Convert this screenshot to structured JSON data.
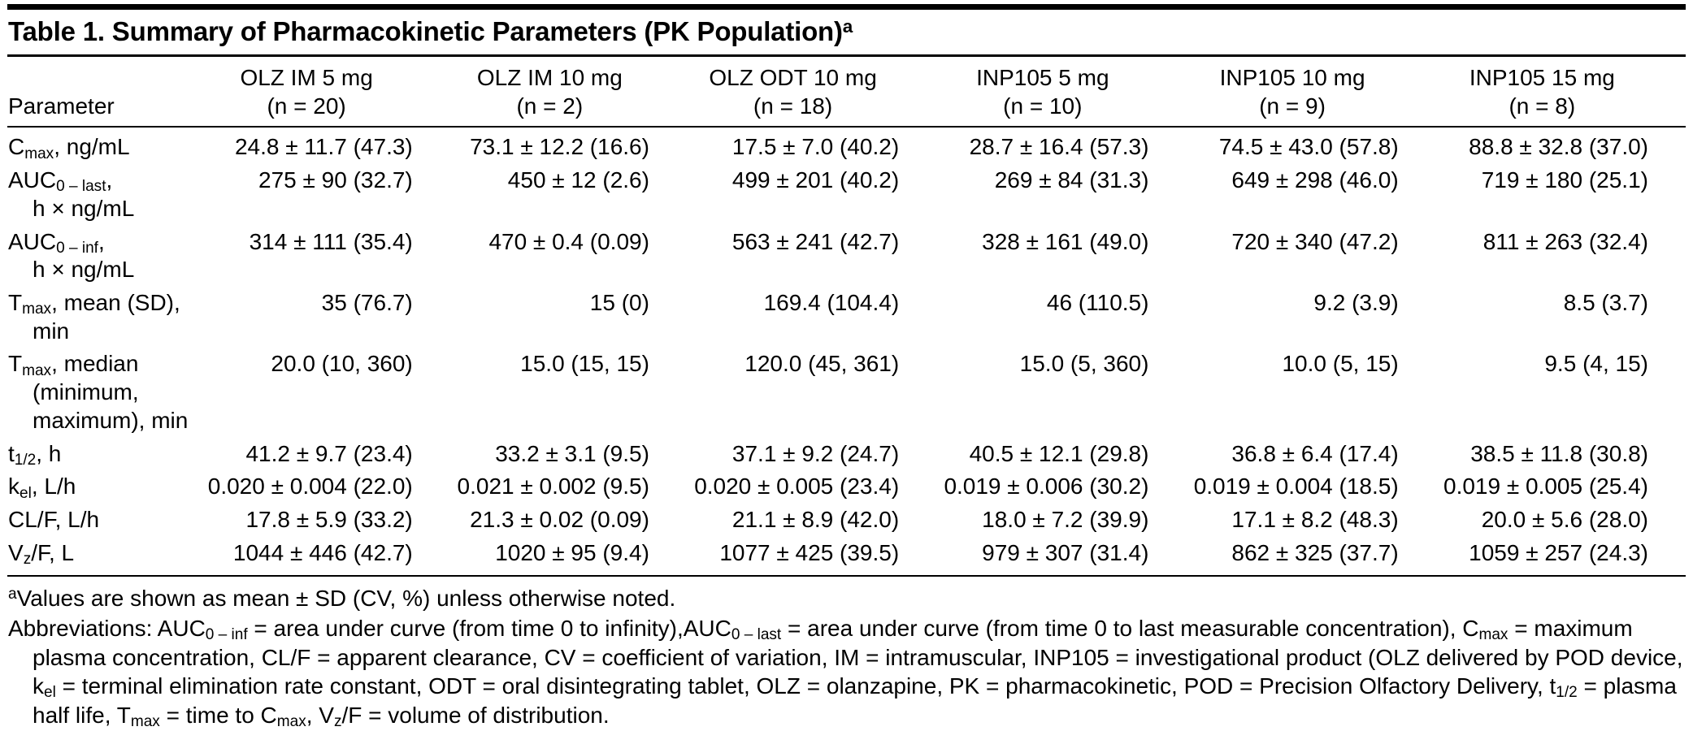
{
  "table": {
    "title": "Table 1. Summary of Pharmacokinetic Parameters (PK Population)^a^",
    "param_header": "Parameter",
    "columns": [
      {
        "label": "OLZ IM 5 mg",
        "n": "(n = 20)"
      },
      {
        "label": "OLZ IM 10 mg",
        "n": "(n = 2)"
      },
      {
        "label": "OLZ ODT 10 mg",
        "n": "(n = 18)"
      },
      {
        "label": "INP105 5 mg",
        "n": "(n = 10)"
      },
      {
        "label": "INP105 10 mg",
        "n": "(n = 9)"
      },
      {
        "label": "INP105 15 mg",
        "n": "(n = 8)"
      }
    ],
    "rows": [
      {
        "param_lines": [
          "C~max~, ng/mL"
        ],
        "values": [
          "24.8 ± 11.7 (47.3)",
          "73.1 ± 12.2 (16.6)",
          "17.5 ± 7.0 (40.2)",
          "28.7 ± 16.4 (57.3)",
          "74.5 ± 43.0 (57.8)",
          "88.8 ± 32.8 (37.0)"
        ]
      },
      {
        "param_lines": [
          "AUC~0 – last~,",
          "h × ng/mL"
        ],
        "values": [
          "275 ± 90 (32.7)",
          "450 ± 12 (2.6)",
          "499 ± 201 (40.2)",
          "269 ± 84 (31.3)",
          "649 ± 298 (46.0)",
          "719 ± 180 (25.1)"
        ]
      },
      {
        "param_lines": [
          "AUC~0 – inf~,",
          "h × ng/mL"
        ],
        "values": [
          "314 ± 111 (35.4)",
          "470 ± 0.4 (0.09)",
          "563 ± 241 (42.7)",
          "328 ± 161 (49.0)",
          "720 ± 340 (47.2)",
          "811 ± 263 (32.4)"
        ]
      },
      {
        "param_lines": [
          "T~max~, mean (SD),",
          "min"
        ],
        "values": [
          "35 (76.7)",
          "15 (0)",
          "169.4 (104.4)",
          "46 (110.5)",
          "9.2 (3.9)",
          "8.5 (3.7)"
        ]
      },
      {
        "param_lines": [
          "T~max~, median",
          "(minimum,",
          "maximum), min"
        ],
        "values": [
          "20.0 (10, 360)",
          "15.0 (15, 15)",
          "120.0 (45, 361)",
          "15.0 (5, 360)",
          "10.0 (5, 15)",
          "9.5 (4, 15)"
        ]
      },
      {
        "param_lines": [
          "t~1/2~, h"
        ],
        "values": [
          "41.2 ± 9.7 (23.4)",
          "33.2 ± 3.1 (9.5)",
          "37.1 ± 9.2 (24.7)",
          "40.5 ± 12.1 (29.8)",
          "36.8 ± 6.4 (17.4)",
          "38.5 ± 11.8 (30.8)"
        ]
      },
      {
        "param_lines": [
          "k~el~, L/h"
        ],
        "values": [
          "0.020 ± 0.004 (22.0)",
          "0.021 ± 0.002 (9.5)",
          "0.020 ± 0.005 (23.4)",
          "0.019 ± 0.006 (30.2)",
          "0.019 ± 0.004 (18.5)",
          "0.019 ± 0.005 (25.4)"
        ]
      },
      {
        "param_lines": [
          "CL/F, L/h"
        ],
        "values": [
          "17.8 ± 5.9 (33.2)",
          "21.3 ± 0.02 (0.09)",
          "21.1 ± 8.9 (42.0)",
          "18.0 ± 7.2 (39.9)",
          "17.1 ± 8.2 (48.3)",
          "20.0 ± 5.6 (28.0)"
        ]
      },
      {
        "param_lines": [
          "V~z~/F, L"
        ],
        "values": [
          "1044 ± 446 (42.7)",
          "1020 ± 95 (9.4)",
          "1077 ± 425 (39.5)",
          "979 ± 307 (31.4)",
          "862 ± 325 (37.7)",
          "1059 ± 257 (24.3)"
        ]
      }
    ]
  },
  "footnotes": [
    "^a^Values are shown as mean ± SD (CV, %) unless otherwise noted.",
    "Abbreviations: AUC~0 – inf~ = area under curve (from time 0 to infinity),AUC~0 – last~ = area under curve (from time 0 to last measurable concentration), C~max~ = maximum plasma concentration, CL/F = apparent clearance, CV = coefficient of variation, IM = intramuscular, INP105 = investigational product (OLZ delivered by POD device, k~el~ = terminal elimination rate constant, ODT = oral disintegrating tablet, OLZ = olanzapine, PK = pharmacokinetic, POD = Precision Olfactory Delivery, t~1/2~ = plasma half life, T~max~ = time to C~max~, V~z~/F = volume of distribution."
  ],
  "colors": {
    "rule": "#000000",
    "text": "#000000",
    "background": "#ffffff"
  }
}
